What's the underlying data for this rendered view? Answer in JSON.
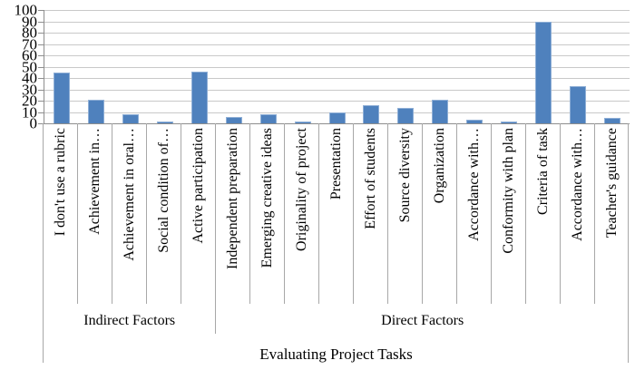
{
  "chart_data": {
    "type": "bar",
    "title": "",
    "xlabel": "Evaluating Project Tasks",
    "ylabel": "",
    "ylim": [
      0,
      100
    ],
    "yticks": [
      0,
      10,
      20,
      30,
      40,
      50,
      60,
      70,
      80,
      90,
      100
    ],
    "grid": true,
    "legend": null,
    "categories": [
      "I don't use a rubric",
      "Achievement in…",
      "Achievement in oral…",
      "Social condition of…",
      "Active participation",
      "Independent preparation",
      "Emerging creative ideas",
      "Originality of project",
      "Presentation",
      "Effort of students",
      "Source diversity",
      "Organization",
      "Accordance with…",
      "Conformity with plan",
      "Criteria of task",
      "Accordance with…",
      "Teacher's guidance"
    ],
    "values": [
      45,
      21,
      8,
      2,
      46,
      6,
      8,
      2,
      10,
      16,
      14,
      21,
      3,
      2,
      90,
      33,
      5
    ],
    "groups": [
      {
        "label": "Indirect Factors",
        "span": 5
      },
      {
        "label": "Direct Factors",
        "span": 12
      }
    ],
    "colors": {
      "bar": "#4F81BD",
      "bar_edge": "#8fafd6",
      "gridline": "#c9c9c9",
      "axis": "#8e8e8e",
      "separator": "#a8a8a8",
      "text": "#000000"
    }
  }
}
